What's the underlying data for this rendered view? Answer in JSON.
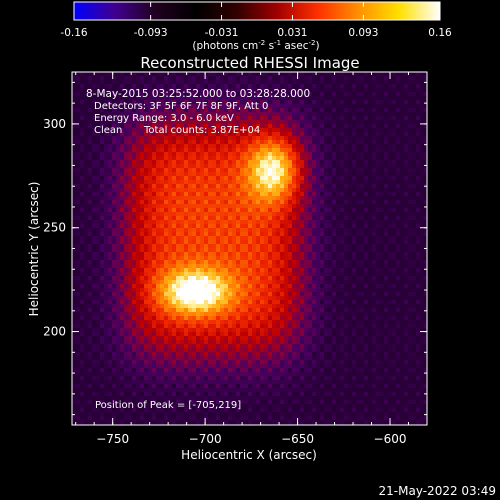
{
  "colorbar": {
    "ticks": [
      -0.16,
      -0.093,
      -0.031,
      0.031,
      0.093,
      0.16
    ],
    "tick_labels": [
      "-0.16",
      "-0.093",
      "-0.031",
      "0.031",
      "0.093",
      "0.16"
    ],
    "unit_base": "(photons cm",
    "unit_exp1": "-2",
    "unit_mid": " s",
    "unit_exp2": "-1",
    "unit_end": " asec",
    "unit_exp3": "-2",
    "unit_close": ")",
    "colors": [
      "#0000ff",
      "#400090",
      "#200020",
      "#000000",
      "#300000",
      "#a00000",
      "#ff3000",
      "#ff9000",
      "#ffe000",
      "#ffffff"
    ]
  },
  "chart_data": {
    "type": "heatmap",
    "title": "Reconstructed RHESSI Image",
    "xlabel": "Heliocentric X (arcsec)",
    "ylabel": "Heliocentric Y (arcsec)",
    "xlim": [
      -772,
      -580
    ],
    "ylim": [
      155,
      325
    ],
    "x_ticks": [
      -750,
      -700,
      -650,
      -600
    ],
    "y_ticks": [
      200,
      250,
      300
    ],
    "x_tick_labels": [
      "−750",
      "−700",
      "−650",
      "−600"
    ],
    "y_tick_labels": [
      "200",
      "250",
      "300"
    ],
    "value_range": [
      -0.16,
      0.16
    ],
    "sources": [
      {
        "x": -705,
        "y": 219,
        "peak": 0.16
      },
      {
        "x": -663,
        "y": 278,
        "peak": 0.15
      }
    ],
    "annotations": {
      "time": "8-May-2015 03:25:52.000 to 03:28:28.000",
      "detectors": "Detectors: 3F 5F 6F 7F 8F 9F, Att 0",
      "energy": "Energy Range: 3.0 - 6.0 keV",
      "algorithm": "Clean",
      "counts": "Total counts: 3.87E+04",
      "peak": "Position of Peak = [-705,219]"
    }
  },
  "footer": {
    "timestamp": "21-May-2022 03:49"
  }
}
